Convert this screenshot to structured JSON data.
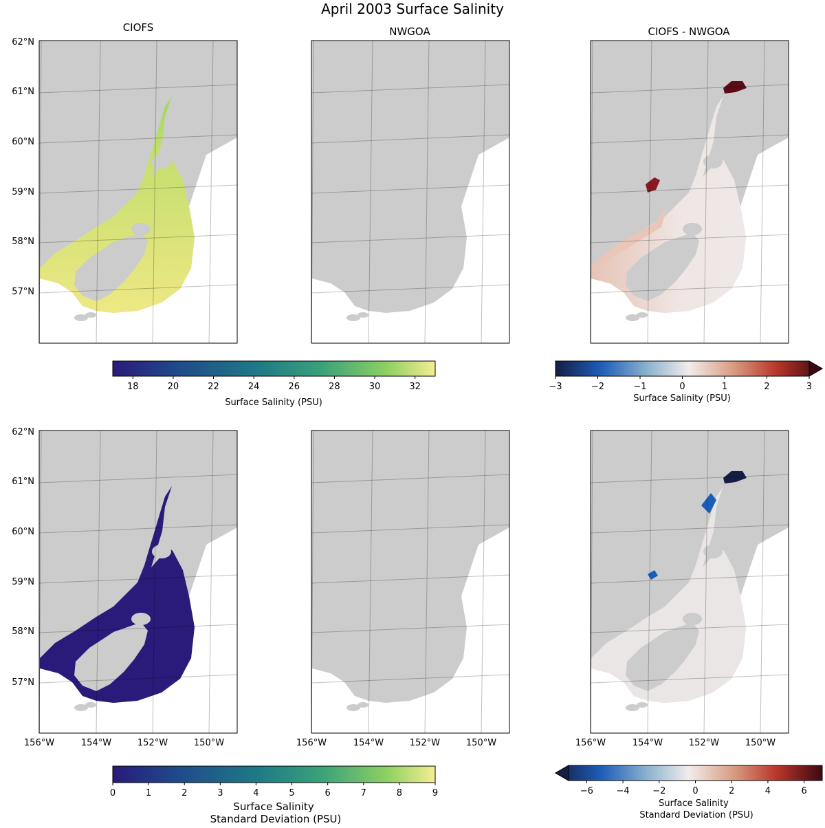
{
  "figure": {
    "title": "April 2003 Surface Salinity"
  },
  "panels": {
    "col_titles": [
      "CIOFS",
      "NWGOA",
      "CIOFS - NWGOA"
    ]
  },
  "axes": {
    "lat_labels": [
      "62°N",
      "61°N",
      "60°N",
      "59°N",
      "58°N",
      "57°N"
    ],
    "lon_labels": [
      "156°W",
      "154°W",
      "152°W",
      "150°W"
    ]
  },
  "colorbars": {
    "mean": {
      "label": "Surface Salinity (PSU)",
      "min": 17,
      "max": 33,
      "ticks": [
        "18",
        "20",
        "22",
        "24",
        "26",
        "28",
        "30",
        "32"
      ],
      "colormap": "viridis-like",
      "colors": [
        "#2a1a7a",
        "#1f4a8a",
        "#1e7a86",
        "#3aa27a",
        "#8ed062",
        "#f5ed91"
      ]
    },
    "mean_diff": {
      "label": "Surface Salinity (PSU)",
      "min": -3,
      "max": 3,
      "ticks": [
        "−3",
        "−2",
        "−1",
        "0",
        "1",
        "2",
        "3"
      ],
      "extend": "max",
      "colors": [
        "#151d44",
        "#1c5db8",
        "#8fb5cf",
        "#f1ecec",
        "#d89a7f",
        "#b8352a",
        "#3c0912"
      ]
    },
    "std": {
      "label_line1": "Surface Salinity",
      "label_line2": "Standard Deviation (PSU)",
      "min": 0,
      "max": 9,
      "ticks": [
        "0",
        "1",
        "2",
        "3",
        "4",
        "5",
        "6",
        "7",
        "8",
        "9"
      ],
      "colors": [
        "#2a1a7a",
        "#1f4a8a",
        "#1e7a86",
        "#3aa27a",
        "#8ed062",
        "#f5ed91"
      ]
    },
    "std_diff": {
      "label_line1": "Surface Salinity",
      "label_line2": "Standard Deviation (PSU)",
      "min": -7,
      "max": 7,
      "ticks": [
        "−6",
        "−4",
        "−2",
        "0",
        "2",
        "4",
        "6"
      ],
      "extend": "min",
      "colors": [
        "#151d44",
        "#1c5db8",
        "#8fb5cf",
        "#f1ecec",
        "#d89a7f",
        "#b8352a",
        "#3c0912"
      ]
    }
  },
  "colors": {
    "land": "#cccccc",
    "ocean_blank": "#ffffff"
  }
}
